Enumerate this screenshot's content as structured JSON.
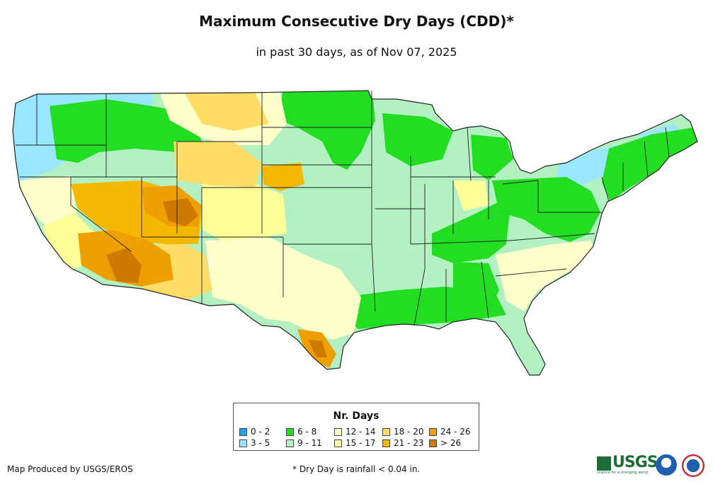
{
  "title": "Maximum Consecutive Dry Days (CDD)*",
  "subtitle": "in past 30 days, as of Nov 07, 2025",
  "legend": {
    "title": "Nr. Days",
    "items": [
      {
        "label": "0 - 2",
        "color": "#1aa3ff"
      },
      {
        "label": "3 - 5",
        "color": "#99e6ff"
      },
      {
        "label": "6 - 8",
        "color": "#22dd22"
      },
      {
        "label": "9 - 11",
        "color": "#b3f0c2"
      },
      {
        "label": "12 - 14",
        "color": "#ffffcc"
      },
      {
        "label": "15 - 17",
        "color": "#ffff99"
      },
      {
        "label": "18 - 20",
        "color": "#ffdd66"
      },
      {
        "label": "21 - 23",
        "color": "#f5b800"
      },
      {
        "label": "24 - 26",
        "color": "#eea000"
      },
      {
        "label": "> 26",
        "color": "#cc7a00"
      }
    ]
  },
  "footer": {
    "credit": "Map Produced by USGS/EROS",
    "note": "* Dry Day is rainfall < 0.04 in."
  },
  "logos": {
    "usgs_text": "USGS",
    "usgs_tagline": "science for a changing world"
  }
}
